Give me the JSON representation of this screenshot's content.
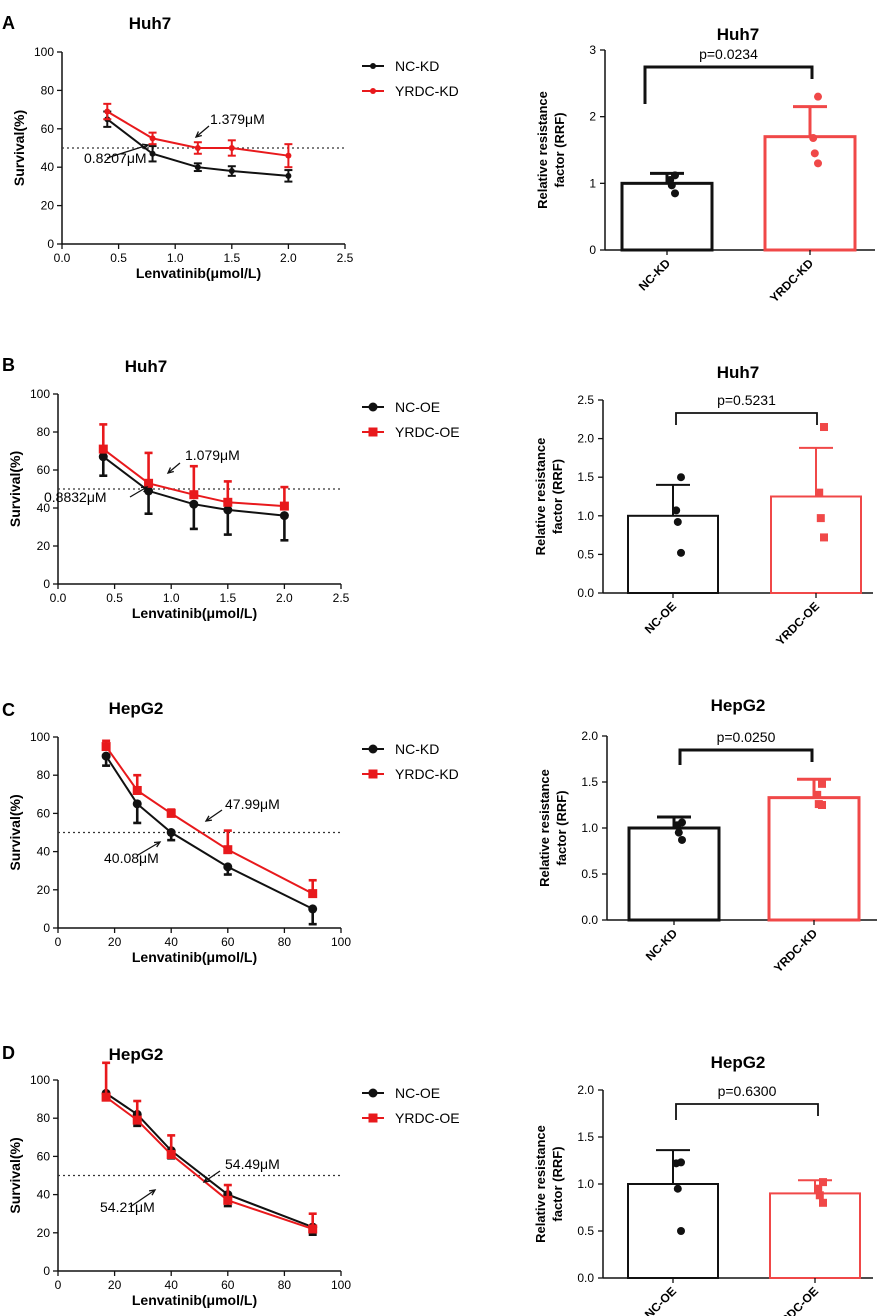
{
  "colors": {
    "black": "#111111",
    "red": "#e8191c",
    "red_light": "#f04848"
  },
  "chart_data": [
    {
      "panel_label": "A",
      "type": "line",
      "title": "Huh7",
      "xlabel": "Lenvatinib(μmol/L)",
      "ylabel": "Survival(%)",
      "xlim": [
        0,
        2.5
      ],
      "ylim": [
        0,
        100
      ],
      "xticks": [
        "0.0",
        "0.5",
        "1.0",
        "1.5",
        "2.0",
        "2.5"
      ],
      "yticks": [
        "0",
        "20",
        "40",
        "60",
        "80",
        "100"
      ],
      "marker": "dot",
      "dashed_line_y": 50,
      "series": [
        {
          "name": "NC-KD",
          "color": "black",
          "x": [
            0.4,
            0.8,
            1.2,
            1.5,
            2.0
          ],
          "y": [
            65,
            47,
            40,
            38,
            35.5
          ],
          "err": [
            4,
            4,
            2,
            2.5,
            3
          ]
        },
        {
          "name": "YRDC-KD",
          "color": "red",
          "x": [
            0.4,
            0.8,
            1.2,
            1.5,
            2.0
          ],
          "y": [
            69,
            55,
            50,
            50,
            46
          ],
          "err": [
            4,
            3,
            3,
            4,
            6
          ]
        }
      ],
      "annotations": [
        {
          "text": "1.379μM",
          "series": "YRDC-KD"
        },
        {
          "text": "0.8207μM",
          "series": "NC-KD"
        }
      ]
    },
    {
      "panel_label": "",
      "type": "bar",
      "title": "Huh7",
      "ylabel": "Relative resistance factor (RRF)",
      "ylim": [
        0,
        3
      ],
      "yticks": [
        "0",
        "1",
        "2",
        "3"
      ],
      "categories": [
        "NC-KD",
        "YRDC-KD"
      ],
      "values": [
        1.0,
        1.7
      ],
      "errors": [
        0.15,
        0.45
      ],
      "points": [
        [
          0.85,
          0.97,
          1.05,
          1.12
        ],
        [
          1.3,
          1.45,
          1.68,
          2.3
        ]
      ],
      "point_marker": "dot",
      "significance": "p=0.0234",
      "thick": true
    },
    {
      "panel_label": "B",
      "type": "line",
      "title": "Huh7",
      "xlabel": "Lenvatinib(μmol/L)",
      "ylabel": "Survival(%)",
      "xlim": [
        0,
        2.5
      ],
      "ylim": [
        0,
        100
      ],
      "xticks": [
        "0.0",
        "0.5",
        "1.0",
        "1.5",
        "2.0",
        "2.5"
      ],
      "yticks": [
        "0",
        "20",
        "40",
        "60",
        "80",
        "100"
      ],
      "marker": "mixed",
      "dashed_line_y": 50,
      "series": [
        {
          "name": "NC-OE",
          "color": "black",
          "x": [
            0.4,
            0.8,
            1.2,
            1.5,
            2.0
          ],
          "y": [
            67,
            49,
            42,
            39,
            36
          ],
          "err": [
            10,
            12,
            13,
            13,
            13
          ]
        },
        {
          "name": "YRDC-OE",
          "color": "red",
          "x": [
            0.4,
            0.8,
            1.2,
            1.5,
            2.0
          ],
          "y": [
            71,
            53,
            47,
            43,
            41
          ],
          "err": [
            13,
            16,
            15,
            11,
            10
          ]
        }
      ],
      "annotations": [
        {
          "text": "1.079μM",
          "series": "YRDC-OE"
        },
        {
          "text": "0.8832μM",
          "series": "NC-OE"
        }
      ]
    },
    {
      "panel_label": "",
      "type": "bar",
      "title": "Huh7",
      "ylabel": "Relative resistance factor (RRF)",
      "ylim": [
        0,
        2.5
      ],
      "yticks": [
        "0.0",
        "0.5",
        "1.0",
        "1.5",
        "2.0",
        "2.5"
      ],
      "categories": [
        "NC-OE",
        "YRDC-OE"
      ],
      "values": [
        1.0,
        1.25
      ],
      "errors": [
        0.4,
        0.63
      ],
      "points": [
        [
          0.52,
          0.92,
          1.07,
          1.5
        ],
        [
          0.72,
          0.97,
          1.3,
          2.15
        ]
      ],
      "point_marker": "mixed",
      "significance": "p=0.5231",
      "thick": false
    },
    {
      "panel_label": "C",
      "type": "line",
      "title": "HepG2",
      "xlabel": "Lenvatinib(μmol/L)",
      "ylabel": "Survival(%)",
      "xlim": [
        0,
        100
      ],
      "ylim": [
        0,
        100
      ],
      "xticks": [
        "0",
        "20",
        "40",
        "60",
        "80",
        "100"
      ],
      "yticks": [
        "0",
        "20",
        "40",
        "60",
        "80",
        "100"
      ],
      "marker": "mixed",
      "dashed_line_y": 50,
      "series": [
        {
          "name": "NC-KD",
          "color": "black",
          "x": [
            17,
            28,
            40,
            60,
            90
          ],
          "y": [
            90,
            65,
            50,
            32,
            10
          ],
          "err": [
            5,
            10,
            4,
            4,
            8
          ]
        },
        {
          "name": "YRDC-KD",
          "color": "red",
          "x": [
            17,
            28,
            40,
            60,
            90
          ],
          "y": [
            95,
            72,
            60,
            41,
            18
          ],
          "err": [
            3,
            8,
            2,
            10,
            7
          ]
        }
      ],
      "annotations": [
        {
          "text": "47.99μM",
          "series": "YRDC-KD"
        },
        {
          "text": "40.08μM",
          "series": "NC-KD"
        }
      ]
    },
    {
      "panel_label": "",
      "type": "bar",
      "title": "HepG2",
      "ylabel": "Relative resistance factor (RRF)",
      "ylim": [
        0,
        2.0
      ],
      "yticks": [
        "0.0",
        "0.5",
        "1.0",
        "1.5",
        "2.0"
      ],
      "categories": [
        "NC-KD",
        "YRDC-KD"
      ],
      "values": [
        1.0,
        1.33
      ],
      "errors": [
        0.12,
        0.2
      ],
      "points": [
        [
          0.87,
          0.95,
          1.03,
          1.06
        ],
        [
          1.25,
          1.26,
          1.36,
          1.48
        ]
      ],
      "point_marker": "mixed",
      "significance": "p=0.0250",
      "thick": true
    },
    {
      "panel_label": "D",
      "type": "line",
      "title": "HepG2",
      "xlabel": "Lenvatinib(μmol/L)",
      "ylabel": "Survival(%)",
      "xlim": [
        0,
        100
      ],
      "ylim": [
        0,
        100
      ],
      "xticks": [
        "0",
        "20",
        "40",
        "60",
        "80",
        "100"
      ],
      "yticks": [
        "0",
        "20",
        "40",
        "60",
        "80",
        "100"
      ],
      "marker": "mixed",
      "dashed_line_y": 50,
      "series": [
        {
          "name": "NC-OE",
          "color": "black",
          "x": [
            17,
            28,
            40,
            60,
            90
          ],
          "y": [
            93,
            82,
            63,
            40,
            23
          ],
          "err": [
            3,
            6,
            4,
            6,
            4
          ]
        },
        {
          "name": "YRDC-OE",
          "color": "red",
          "x": [
            17,
            28,
            40,
            60,
            90
          ],
          "y": [
            91,
            79,
            61,
            37,
            22
          ],
          "err": [
            18,
            10,
            10,
            8,
            8
          ]
        }
      ],
      "annotations": [
        {
          "text": "54.49μM",
          "series": "YRDC-OE"
        },
        {
          "text": "54.21μM",
          "series": "NC-OE"
        }
      ]
    },
    {
      "panel_label": "",
      "type": "bar",
      "title": "HepG2",
      "ylabel": "Relative resistance factor (RRF)",
      "ylim": [
        0,
        2.0
      ],
      "yticks": [
        "0.0",
        "0.5",
        "1.0",
        "1.5",
        "2.0"
      ],
      "categories": [
        "NC-OE",
        "YRDC-OE"
      ],
      "values": [
        1.0,
        0.9
      ],
      "errors": [
        0.36,
        0.14
      ],
      "points": [
        [
          0.5,
          0.95,
          1.22,
          1.23
        ],
        [
          0.8,
          0.88,
          0.95,
          1.02
        ]
      ],
      "point_marker": "mixed",
      "significance": "p=0.6300",
      "thick": false
    }
  ]
}
